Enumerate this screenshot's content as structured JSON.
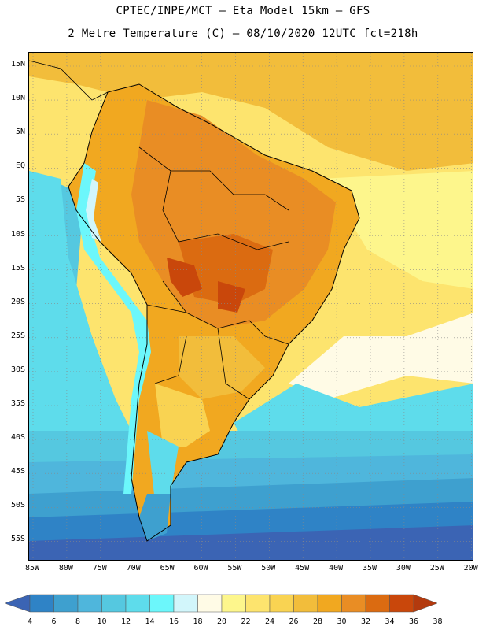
{
  "header": {
    "line1": "CPTEC/INPE/MCT –  Eta Model 15km – GFS",
    "line2": "2 Metre Temperature (C) – 08/10/2020 12UTC fct=218h"
  },
  "map": {
    "lat_ticks": [
      "15N",
      "10N",
      "5N",
      "EQ",
      "5S",
      "10S",
      "15S",
      "20S",
      "25S",
      "30S",
      "35S",
      "40S",
      "45S",
      "50S",
      "55S"
    ],
    "lon_ticks": [
      "85W",
      "80W",
      "75W",
      "70W",
      "65W",
      "60W",
      "55W",
      "50W",
      "45W",
      "40W",
      "35W",
      "30W",
      "25W",
      "20W"
    ],
    "lon_range": [
      -85,
      -20
    ],
    "lat_range": [
      -59,
      16
    ],
    "grid": true
  },
  "colorbar": {
    "labels": [
      "4",
      "6",
      "8",
      "10",
      "12",
      "14",
      "16",
      "18",
      "20",
      "22",
      "24",
      "26",
      "28",
      "30",
      "32",
      "34",
      "36",
      "38"
    ],
    "colors": [
      "#3b64b4",
      "#2f83c6",
      "#3ea0cf",
      "#4fb6dc",
      "#55c8e0",
      "#5edceb",
      "#6cf7fb",
      "#d2f6fb",
      "#fffbe6",
      "#fdf68c",
      "#fde46e",
      "#f9d352",
      "#f2bd3b",
      "#f1a820",
      "#e98d24",
      "#db6b11",
      "#c9470b",
      "#b33a0e"
    ]
  }
}
